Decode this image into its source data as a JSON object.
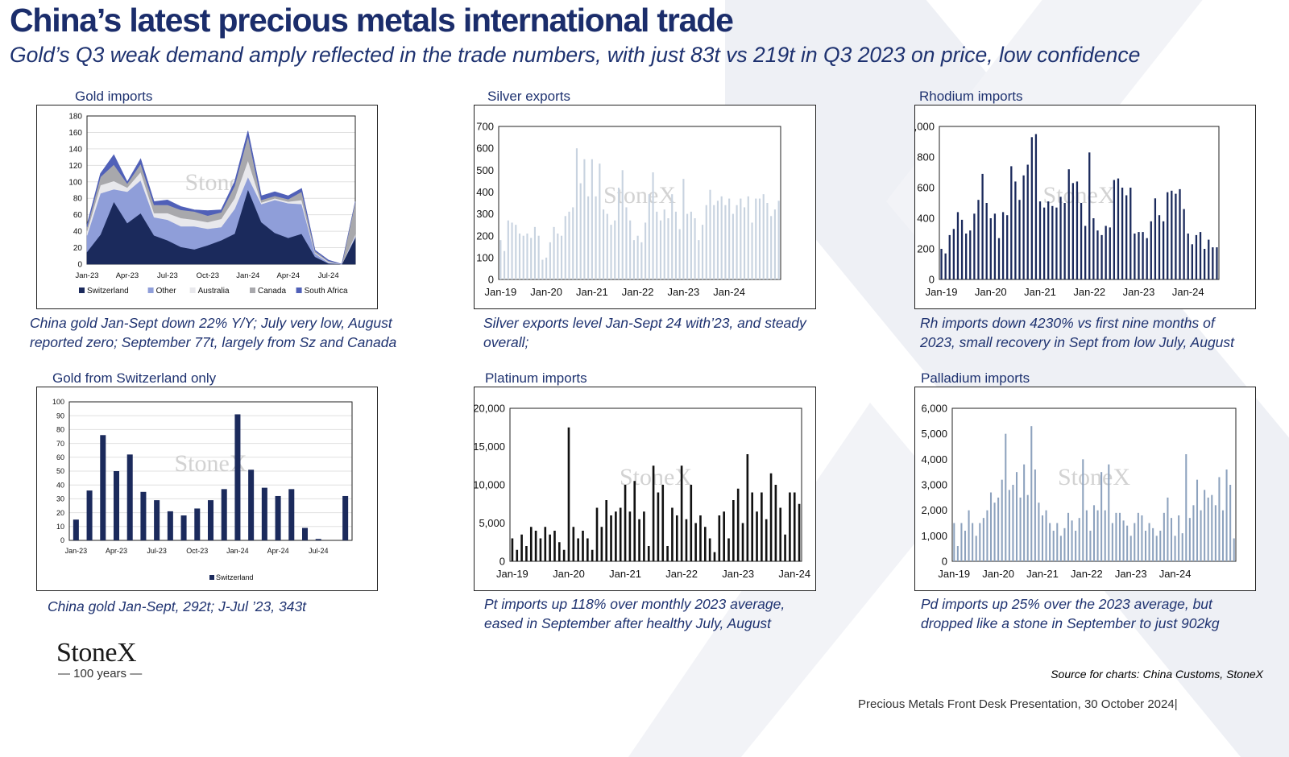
{
  "header": {
    "title": "China’s latest precious metals international trade",
    "subtitle": "Gold’s Q3 weak demand amply reflected in the trade numbers, with just 83t vs 219t in Q3 2023 on price, low confidence"
  },
  "panels": {
    "gold_imports": {
      "title": "Gold imports",
      "caption1": "China gold Jan-Sept down 22% Y/Y; July very low, August",
      "caption2": "reported zero; September 77t, largely from Sz and Canada"
    },
    "silver_exports": {
      "title": "Silver exports",
      "caption1": "Silver exports level Jan-Sept 24 with’23, and steady",
      "caption2": "overall;"
    },
    "rhodium_imports": {
      "title": "Rhodium imports",
      "caption1": "Rh imports down 4230% vs first nine months of",
      "caption2": "2023, small recovery in Sept from low July, August"
    },
    "gold_switzerland": {
      "title": "Gold from Switzerland only",
      "caption1": "China gold Jan-Sept, 292t; J-Jul ’23, 343t"
    },
    "platinum_imports": {
      "title": "Platinum imports",
      "caption1": "Pt imports up 118% over monthly 2023 average,",
      "caption2": "eased in September after healthy July, August"
    },
    "palladium_imports": {
      "title": "Palladium imports",
      "caption1": "Pd imports up 25% over the 2023 average, but",
      "caption2": "dropped like a stone in September to just 902kg"
    }
  },
  "watermark": "StoneX",
  "logo": {
    "word": "StoneX",
    "years": "— 100 years —"
  },
  "source": "Source for charts: China Customs, StoneX",
  "footer": "Precious Metals Front Desk Presentation, 30 October 2024|",
  "chart_data": [
    {
      "id": "gold_imports",
      "type": "area",
      "x": [
        "Jan-23",
        "Feb-23",
        "Mar-23",
        "Apr-23",
        "May-23",
        "Jun-23",
        "Jul-23",
        "Aug-23",
        "Sep-23",
        "Oct-23",
        "Nov-23",
        "Dec-23",
        "Jan-24",
        "Feb-24",
        "Mar-24",
        "Apr-24",
        "May-24",
        "Jun-24",
        "Jul-24",
        "Aug-24",
        "Sep-24"
      ],
      "xticks": [
        "Jan-23",
        "Apr-23",
        "Jul-23",
        "Oct-23",
        "Jan-24",
        "Apr-24",
        "Jul-24"
      ],
      "ylim": [
        0,
        180
      ],
      "yticks": [
        0,
        20,
        40,
        60,
        80,
        100,
        120,
        140,
        160,
        180
      ],
      "legend_position": "bottom",
      "series": [
        {
          "name": "Switzerland",
          "color": "#1b2a5c",
          "values": [
            15,
            36,
            76,
            50,
            62,
            35,
            29,
            21,
            18,
            23,
            29,
            37,
            91,
            51,
            38,
            32,
            37,
            9,
            1,
            0,
            32
          ]
        },
        {
          "name": "Other",
          "color": "#8f9ed9",
          "values": [
            20,
            50,
            15,
            38,
            40,
            22,
            25,
            25,
            28,
            20,
            16,
            30,
            15,
            22,
            40,
            42,
            36,
            4,
            1,
            0,
            2
          ]
        },
        {
          "name": "Australia",
          "color": "#e8e8ec",
          "values": [
            5,
            10,
            10,
            5,
            10,
            5,
            8,
            10,
            8,
            8,
            10,
            13,
            20,
            2,
            2,
            2,
            5,
            1,
            1,
            0,
            2
          ]
        },
        {
          "name": "Canada",
          "color": "#a8a8ac",
          "values": [
            5,
            10,
            20,
            5,
            10,
            10,
            10,
            10,
            10,
            8,
            8,
            15,
            30,
            3,
            3,
            3,
            10,
            2,
            1,
            0,
            40
          ]
        },
        {
          "name": "South Africa",
          "color": "#5060b8",
          "values": [
            3,
            4,
            12,
            2,
            6,
            4,
            6,
            4,
            2,
            6,
            3,
            5,
            6,
            5,
            5,
            4,
            4,
            1,
            1,
            0,
            0
          ]
        }
      ]
    },
    {
      "id": "silver_exports",
      "type": "bar",
      "color": "#c8d3e0",
      "start": "Jan-19",
      "xticks": [
        "Jan-19",
        "Jan-20",
        "Jan-21",
        "Jan-22",
        "Jan-23",
        "Jan-24"
      ],
      "ylim": [
        0,
        700
      ],
      "yticks": [
        0,
        100,
        200,
        300,
        400,
        500,
        600,
        700
      ],
      "values": [
        180,
        130,
        270,
        260,
        250,
        210,
        200,
        210,
        190,
        240,
        200,
        90,
        100,
        170,
        240,
        210,
        200,
        290,
        310,
        330,
        600,
        440,
        550,
        380,
        550,
        380,
        530,
        320,
        300,
        250,
        270,
        420,
        500,
        330,
        270,
        180,
        200,
        170,
        260,
        390,
        490,
        310,
        270,
        320,
        280,
        390,
        310,
        230,
        460,
        300,
        310,
        280,
        180,
        250,
        340,
        410,
        340,
        360,
        380,
        340,
        370,
        300,
        340,
        370,
        330,
        380,
        260,
        370,
        370,
        390,
        350,
        290,
        320,
        360
      ]
    },
    {
      "id": "rhodium_imports",
      "type": "bar",
      "color": "#1b2a5c",
      "start": "Jan-19",
      "xticks": [
        "Jan-19",
        "Jan-20",
        "Jan-21",
        "Jan-22",
        "Jan-23",
        "Jan-24"
      ],
      "ylim": [
        0,
        1000
      ],
      "yticks": [
        0,
        200,
        400,
        600,
        800,
        1000
      ],
      "values": [
        200,
        170,
        290,
        330,
        440,
        390,
        300,
        320,
        430,
        520,
        690,
        500,
        400,
        430,
        270,
        440,
        420,
        740,
        640,
        520,
        680,
        750,
        930,
        950,
        510,
        470,
        510,
        480,
        470,
        540,
        500,
        720,
        630,
        640,
        500,
        350,
        830,
        400,
        320,
        290,
        350,
        340,
        650,
        660,
        600,
        550,
        600,
        300,
        310,
        310,
        270,
        380,
        530,
        420,
        380,
        570,
        580,
        560,
        590,
        460,
        300,
        230,
        290,
        310,
        200,
        260,
        210,
        210
      ]
    },
    {
      "id": "gold_switzerland",
      "type": "bar",
      "color": "#1b2a5c",
      "x": [
        "Jan-23",
        "Feb-23",
        "Mar-23",
        "Apr-23",
        "May-23",
        "Jun-23",
        "Jul-23",
        "Aug-23",
        "Sep-23",
        "Oct-23",
        "Nov-23",
        "Dec-23",
        "Jan-24",
        "Feb-24",
        "Mar-24",
        "Apr-24",
        "May-24",
        "Jun-24",
        "Jul-24",
        "Aug-24",
        "Sep-24"
      ],
      "xticks": [
        "Jan-23",
        "Apr-23",
        "Jul-23",
        "Oct-23",
        "Jan-24",
        "Apr-24",
        "Jul-24"
      ],
      "ylim": [
        0,
        100
      ],
      "yticks": [
        0,
        10,
        20,
        30,
        40,
        50,
        60,
        70,
        80,
        90,
        100
      ],
      "legend": "Switzerland",
      "values": [
        15,
        36,
        76,
        50,
        62,
        35,
        29,
        21,
        18,
        23,
        29,
        37,
        91,
        51,
        38,
        32,
        37,
        9,
        1,
        0,
        32
      ]
    },
    {
      "id": "platinum_imports",
      "type": "bar",
      "color": "#111111",
      "start": "Jan-19",
      "xticks": [
        "Jan-19",
        "Jan-20",
        "Jan-21",
        "Jan-22",
        "Jan-23",
        "Jan-24"
      ],
      "ylim": [
        0,
        20000
      ],
      "yticks": [
        0,
        5000,
        10000,
        15000,
        20000
      ],
      "values": [
        3000,
        1500,
        3500,
        2000,
        4500,
        4000,
        3000,
        4500,
        3500,
        4000,
        2500,
        1500,
        17500,
        4500,
        3000,
        4000,
        3000,
        1500,
        7000,
        4500,
        8000,
        6000,
        6500,
        7000,
        10000,
        6500,
        10500,
        5500,
        6500,
        2000,
        12500,
        9000,
        10000,
        2000,
        7000,
        6000,
        12500,
        5500,
        10000,
        5000,
        6000,
        4500,
        3000,
        1200,
        6000,
        6500,
        3000,
        8000,
        9500,
        5000,
        14000,
        9000,
        6500,
        9000,
        5500,
        11500,
        10000,
        7000,
        3500,
        9000,
        9000,
        7500
      ]
    },
    {
      "id": "palladium_imports",
      "type": "bar",
      "color": "#8da2be",
      "start": "Jan-19",
      "xticks": [
        "Jan-19",
        "Jan-20",
        "Jan-21",
        "Jan-22",
        "Jan-23",
        "Jan-24"
      ],
      "ylim": [
        0,
        6000
      ],
      "yticks": [
        0,
        1000,
        2000,
        3000,
        4000,
        5000,
        6000
      ],
      "values": [
        1500,
        600,
        1500,
        1200,
        2000,
        1500,
        1000,
        1500,
        1700,
        2000,
        2700,
        2300,
        2500,
        3200,
        5000,
        2800,
        3000,
        3500,
        2500,
        3800,
        2600,
        5300,
        3600,
        2300,
        1800,
        2000,
        1500,
        1200,
        1500,
        1000,
        1300,
        1900,
        1600,
        1200,
        1700,
        4000,
        2000,
        1200,
        2200,
        2000,
        3500,
        2000,
        3800,
        1500,
        1900,
        1900,
        1600,
        1400,
        1000,
        1500,
        1900,
        1800,
        1200,
        1500,
        1300,
        1000,
        1200,
        1900,
        2500,
        1700,
        1000,
        1800,
        1100,
        4200,
        1700,
        2200,
        3200,
        2000,
        2800,
        2500,
        2600,
        2200,
        3300,
        2000,
        3600,
        3000,
        900
      ]
    }
  ]
}
